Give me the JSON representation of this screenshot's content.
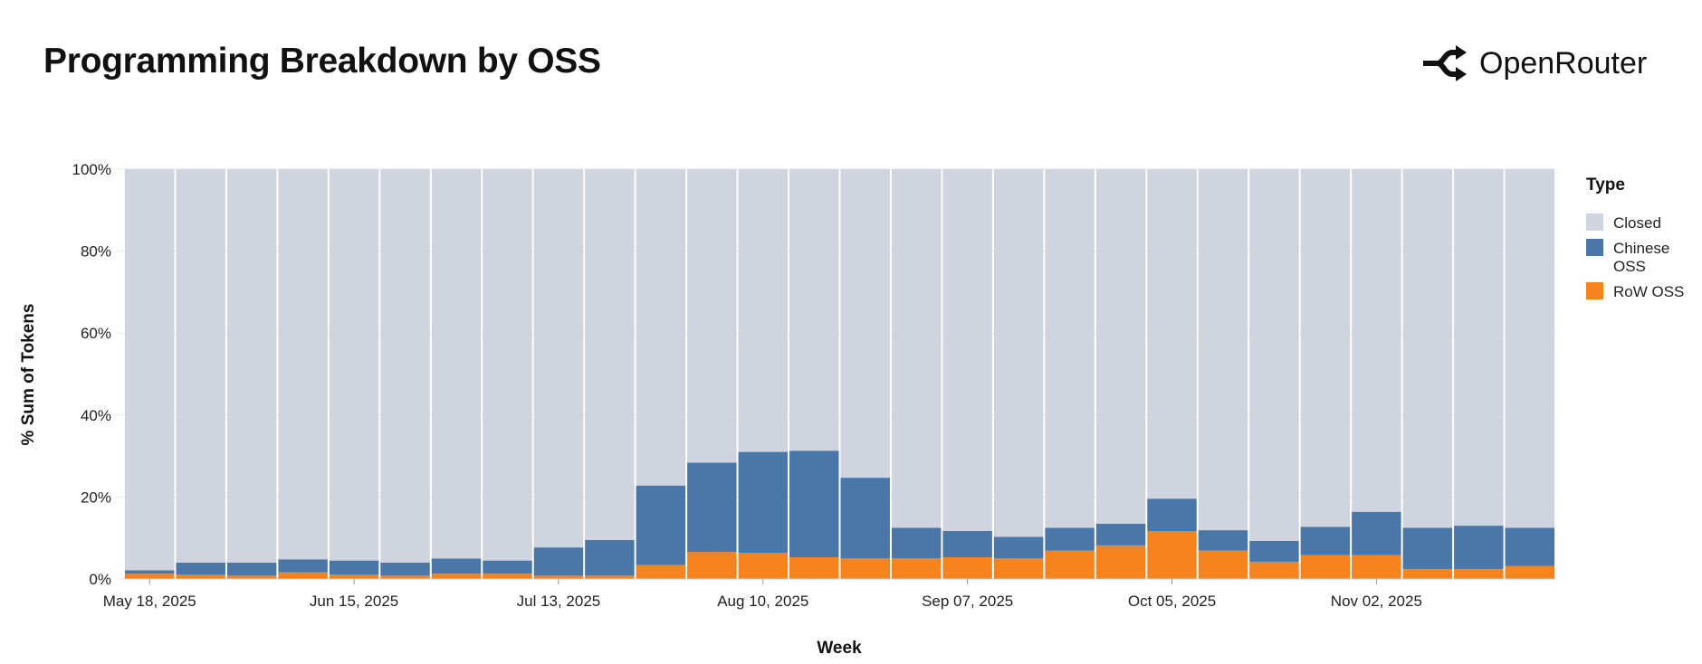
{
  "header": {
    "title": "Programming Breakdown by OSS",
    "brand": "OpenRouter"
  },
  "chart_data": {
    "type": "bar",
    "stacked": "normalized",
    "xlabel": "Week",
    "ylabel": "% Sum of Tokens",
    "ylim": [
      0,
      100
    ],
    "yticks": [
      "0%",
      "20%",
      "40%",
      "60%",
      "80%",
      "100%"
    ],
    "xtick_labels": [
      "May 18, 2025",
      "Jun 15, 2025",
      "Jul 13, 2025",
      "Aug 10, 2025",
      "Sep 07, 2025",
      "Oct 05, 2025",
      "Nov 02, 2025"
    ],
    "categories": [
      "2025-05-18",
      "2025-05-25",
      "2025-06-01",
      "2025-06-08",
      "2025-06-15",
      "2025-06-22",
      "2025-06-29",
      "2025-07-06",
      "2025-07-13",
      "2025-07-20",
      "2025-07-27",
      "2025-08-03",
      "2025-08-10",
      "2025-08-17",
      "2025-08-24",
      "2025-08-31",
      "2025-09-07",
      "2025-09-14",
      "2025-09-21",
      "2025-09-28",
      "2025-10-05",
      "2025-10-12",
      "2025-10-19",
      "2025-10-26",
      "2025-11-02",
      "2025-11-09",
      "2025-11-16",
      "2025-11-23"
    ],
    "legend": {
      "title": "Type",
      "placement": "right"
    },
    "series": [
      {
        "name": "RoW OSS",
        "color": "#f5841f",
        "values": [
          1.3,
          1.1,
          0.8,
          1.6,
          1.1,
          0.8,
          1.3,
          1.3,
          0.8,
          0.8,
          3.4,
          6.6,
          6.4,
          5.3,
          5.0,
          5.0,
          5.3,
          5.0,
          6.9,
          8.2,
          11.7,
          6.9,
          4.2,
          5.8,
          5.8,
          2.4,
          2.4,
          3.2
        ]
      },
      {
        "name": "Chinese OSS",
        "color": "#4a77a8",
        "values": [
          0.8,
          2.9,
          3.2,
          3.2,
          3.4,
          3.2,
          3.7,
          3.2,
          6.9,
          8.7,
          19.4,
          21.8,
          24.6,
          26.0,
          19.7,
          7.5,
          6.4,
          5.3,
          5.6,
          5.3,
          7.9,
          5.0,
          5.1,
          6.9,
          10.6,
          10.1,
          10.6,
          9.3
        ]
      },
      {
        "name": "Closed",
        "color": "#cfd4df",
        "values": [
          97.9,
          96.0,
          96.0,
          95.2,
          95.5,
          96.0,
          95.0,
          95.5,
          92.3,
          90.5,
          77.2,
          71.6,
          69.0,
          68.7,
          75.3,
          87.5,
          88.3,
          89.7,
          87.5,
          86.5,
          80.4,
          88.1,
          90.7,
          87.3,
          83.6,
          87.5,
          87.0,
          87.5
        ]
      }
    ],
    "legend_labels": [
      "Closed",
      "Chinese OSS",
      "RoW OSS"
    ],
    "grid": true
  }
}
